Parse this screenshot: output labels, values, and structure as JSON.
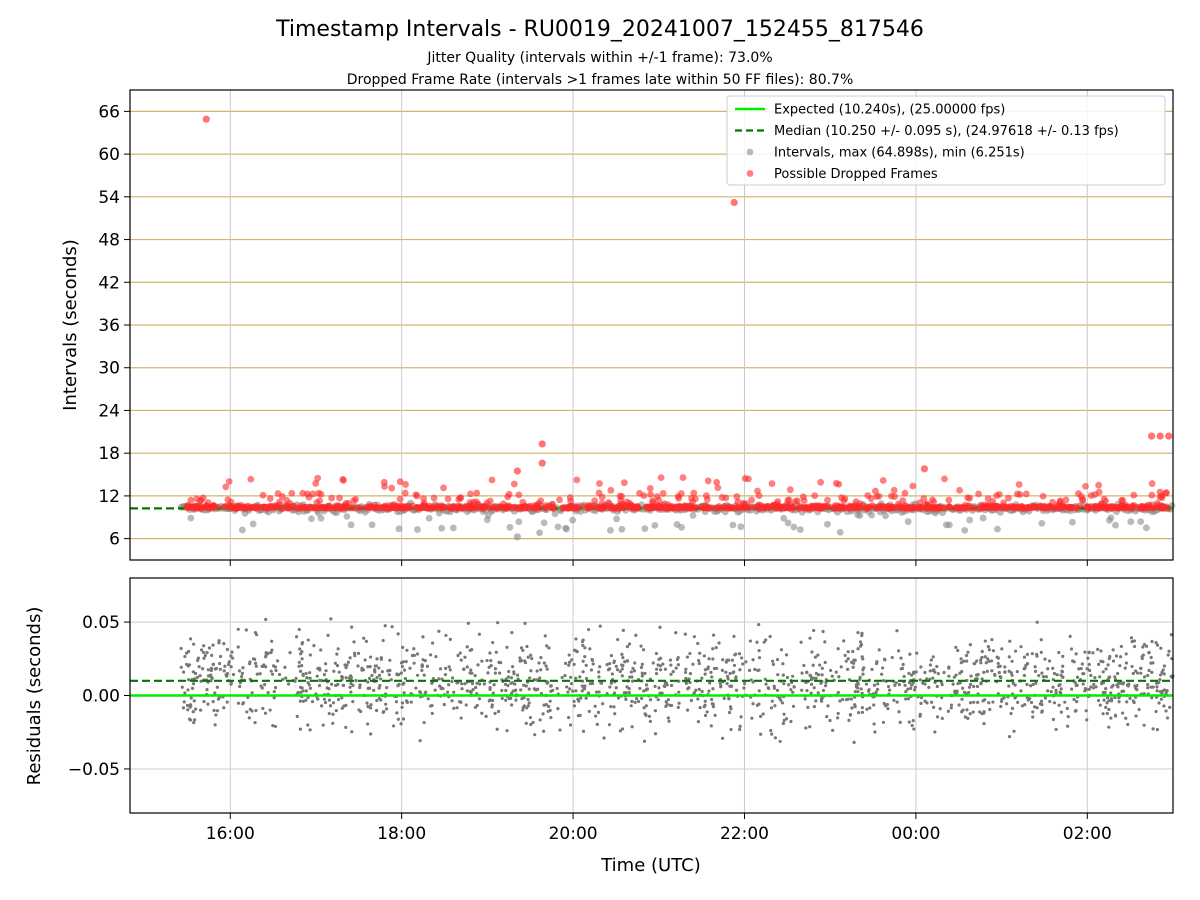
{
  "chart_data": {
    "title": "Timestamp Intervals - RU0019_20241007_152455_817546",
    "subtitle_1": "Jitter Quality (intervals within +/-1 frame): 73.0%",
    "subtitle_2": "Dropped Frame Rate (intervals >1 frames late within 50 FF files): 80.7%",
    "x_axis": {
      "label": "Time (UTC)",
      "type": "time",
      "range_hours": [
        14.83,
        27.0
      ],
      "tick_hours": [
        16,
        18,
        20,
        22,
        24,
        26
      ],
      "tick_labels": [
        "16:00",
        "18:00",
        "20:00",
        "22:00",
        "00:00",
        "02:00"
      ]
    },
    "top_panel": {
      "type": "scatter",
      "ylabel": "Intervals (seconds)",
      "ylim": [
        3.0,
        69.0
      ],
      "y_ticks": [
        6,
        12,
        18,
        24,
        30,
        36,
        42,
        48,
        54,
        60,
        66
      ],
      "grid_horizontal_color": "#d4b46a",
      "grid_vertical_color": "#c8c8c8",
      "expected_value": 10.24,
      "median_value": 10.25,
      "median_start_hour": 14.83,
      "data_start_hour": 15.42,
      "max_interval": 64.898,
      "min_interval": 6.251,
      "notable_points": [
        {
          "time_hour": 15.72,
          "value": 64.898
        },
        {
          "time_hour": 21.88,
          "value": 53.2
        },
        {
          "time_hour": 19.64,
          "value": 19.3
        },
        {
          "time_hour": 19.64,
          "value": 16.6
        },
        {
          "time_hour": 19.35,
          "value": 15.5
        },
        {
          "time_hour": 26.75,
          "value": 20.4
        },
        {
          "time_hour": 26.85,
          "value": 20.4
        },
        {
          "time_hour": 26.95,
          "value": 20.4
        },
        {
          "time_hour": 24.1,
          "value": 15.8
        },
        {
          "time_hour": 19.35,
          "value": 6.251
        }
      ],
      "legend": {
        "placement": "top-right",
        "entries": [
          {
            "label": "Expected (10.240s), (25.00000 fps)",
            "style": "solid-line",
            "color": "#00ee00"
          },
          {
            "label": "Median (10.250 +/- 0.095 s), (24.97618 +/- 0.13 fps)",
            "style": "dashed-line",
            "color": "#007700"
          },
          {
            "label": "Intervals, max (64.898s), min (6.251s)",
            "style": "marker",
            "color": "#8c8c8c"
          },
          {
            "label": "Possible Dropped Frames",
            "style": "marker",
            "color": "#ff2a2a"
          }
        ]
      },
      "colors": {
        "expected": "#00ee00",
        "median": "#007700",
        "intervals": "#8c8c8c",
        "dropped": "#ff2a2a"
      }
    },
    "bottom_panel": {
      "type": "scatter",
      "ylabel": "Residuals (seconds)",
      "ylim": [
        -0.08,
        0.08
      ],
      "y_ticks": [
        -0.05,
        0.0,
        0.05
      ],
      "y_tick_labels": [
        "−0.05",
        "0.00",
        "0.05"
      ],
      "expected_residual": 0.0,
      "median_residual": 0.01,
      "point_color": "#777777"
    }
  }
}
